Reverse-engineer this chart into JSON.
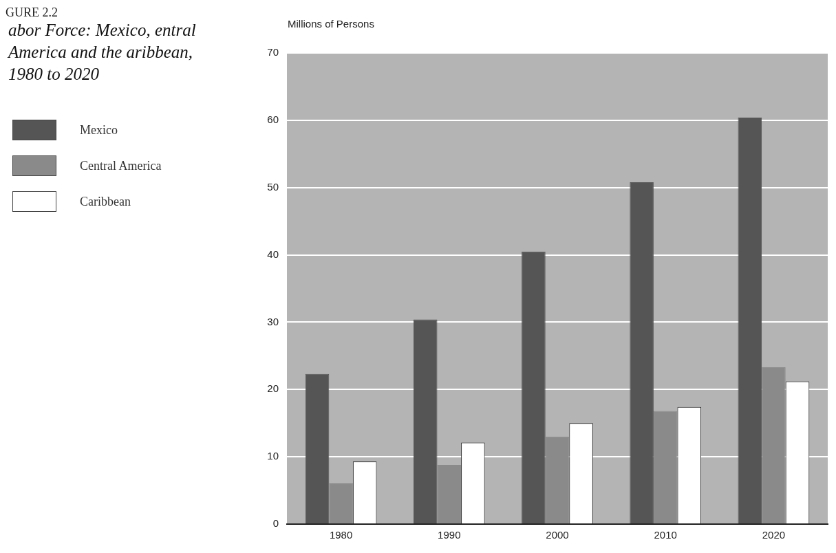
{
  "chart_data": {
    "type": "bar",
    "title": "abor Force: Mexico, entral America and the aribbean, 1980 to 2020",
    "ylabel": "Millions of Persons",
    "annotations": [
      "GURE 2.2"
    ],
    "categories": [
      "1980",
      "1990",
      "2000",
      "2010",
      "2020"
    ],
    "series": [
      {
        "name": "Mexico",
        "color": "#555555",
        "values": [
          22.3,
          30.4,
          40.5,
          50.8,
          60.4
        ]
      },
      {
        "name": "Central America",
        "color": "#8a8a8a",
        "values": [
          6.1,
          8.8,
          13.0,
          16.8,
          23.3
        ]
      },
      {
        "name": "Caribbean",
        "color": "#ffffff",
        "values": [
          9.3,
          12.1,
          15.0,
          17.4,
          21.2
        ]
      }
    ],
    "ylim": [
      0,
      70
    ],
    "yticks": [
      0,
      10,
      20,
      30,
      40,
      50,
      60,
      70
    ],
    "grid": "y",
    "legend": "left"
  }
}
